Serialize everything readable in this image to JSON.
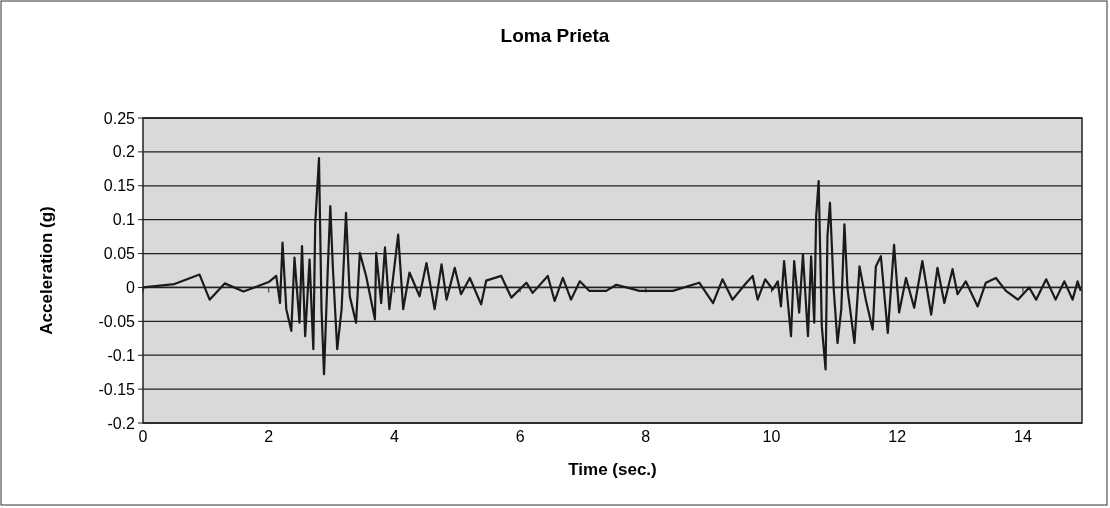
{
  "chart_data": {
    "type": "line",
    "title": "Loma Prieta",
    "xlabel": "Time (sec.)",
    "ylabel": "Acceleration (g)",
    "x": [
      0,
      0.5,
      0.9,
      1.06,
      1.3,
      1.6,
      2.0,
      2.12,
      2.18,
      2.22,
      2.28,
      2.36,
      2.41,
      2.49,
      2.53,
      2.58,
      2.65,
      2.71,
      2.74,
      2.8,
      2.84,
      2.88,
      2.94,
      2.98,
      3.02,
      3.09,
      3.16,
      3.23,
      3.29,
      3.39,
      3.45,
      3.55,
      3.69,
      3.71,
      3.79,
      3.85,
      3.92,
      4.06,
      4.14,
      4.24,
      4.4,
      4.51,
      4.64,
      4.75,
      4.83,
      4.96,
      5.06,
      5.2,
      5.38,
      5.46,
      5.7,
      5.86,
      6.1,
      6.2,
      6.44,
      6.55,
      6.68,
      6.81,
      6.95,
      7.1,
      7.37,
      7.53,
      7.9,
      8.43,
      8.85,
      9.07,
      9.22,
      9.38,
      9.6,
      9.7,
      9.78,
      9.9,
      10.02,
      10.1,
      10.15,
      10.2,
      10.31,
      10.36,
      10.44,
      10.5,
      10.58,
      10.63,
      10.68,
      10.71,
      10.75,
      10.8,
      10.86,
      10.89,
      10.93,
      10.99,
      11.05,
      11.11,
      11.16,
      11.21,
      11.32,
      11.4,
      11.5,
      11.61,
      11.66,
      11.74,
      11.85,
      11.95,
      12.03,
      12.14,
      12.27,
      12.4,
      12.54,
      12.64,
      12.75,
      12.88,
      12.96,
      13.09,
      13.28,
      13.41,
      13.57,
      13.73,
      13.92,
      14.1,
      14.21,
      14.37,
      14.52,
      14.66,
      14.79,
      14.87,
      14.92
    ],
    "series": [
      {
        "color": "#1a1a1a",
        "values": [
          0,
          0.005,
          0.019,
          -0.018,
          0.006,
          -0.006,
          0.008,
          0.017,
          -0.023,
          0.066,
          -0.032,
          -0.064,
          0.044,
          -0.052,
          0.061,
          -0.072,
          0.041,
          -0.091,
          0.093,
          0.191,
          -0.032,
          -0.128,
          0.027,
          0.12,
          0.031,
          -0.091,
          -0.032,
          0.11,
          -0.013,
          -0.052,
          0.051,
          0.017,
          -0.047,
          0.051,
          -0.023,
          0.059,
          -0.032,
          0.078,
          -0.032,
          0.022,
          -0.013,
          0.036,
          -0.032,
          0.034,
          -0.018,
          0.029,
          -0.01,
          0.014,
          -0.025,
          0.01,
          0.017,
          -0.015,
          0.007,
          -0.008,
          0.017,
          -0.02,
          0.014,
          -0.018,
          0.009,
          -0.005,
          -0.005,
          0.004,
          -0.005,
          -0.005,
          0.007,
          -0.023,
          0.012,
          -0.018,
          0.007,
          0.017,
          -0.018,
          0.012,
          -0.003,
          0.009,
          -0.028,
          0.039,
          -0.072,
          0.039,
          -0.037,
          0.049,
          -0.072,
          0.046,
          -0.052,
          0.105,
          0.157,
          -0.057,
          -0.121,
          0.076,
          0.125,
          -0.003,
          -0.082,
          -0.032,
          0.093,
          -0.003,
          -0.082,
          0.031,
          -0.018,
          -0.062,
          0.031,
          0.046,
          -0.067,
          0.063,
          -0.037,
          0.014,
          -0.03,
          0.039,
          -0.04,
          0.029,
          -0.023,
          0.027,
          -0.01,
          0.009,
          -0.028,
          0.007,
          0.014,
          -0.005,
          -0.018,
          0,
          -0.018,
          0.012,
          -0.018,
          0.009,
          -0.018,
          0.009,
          -0.005
        ]
      }
    ],
    "xlim": [
      0,
      14.94
    ],
    "xticks": [
      0,
      2,
      4,
      6,
      8,
      10,
      12,
      14
    ],
    "ylim": [
      -0.2,
      0.25
    ],
    "yticks": [
      -0.2,
      -0.15,
      -0.1,
      -0.05,
      0,
      0.05,
      0.1,
      0.15,
      0.2,
      0.25
    ],
    "grid": "y",
    "marker": "none",
    "line_style": "solid"
  }
}
